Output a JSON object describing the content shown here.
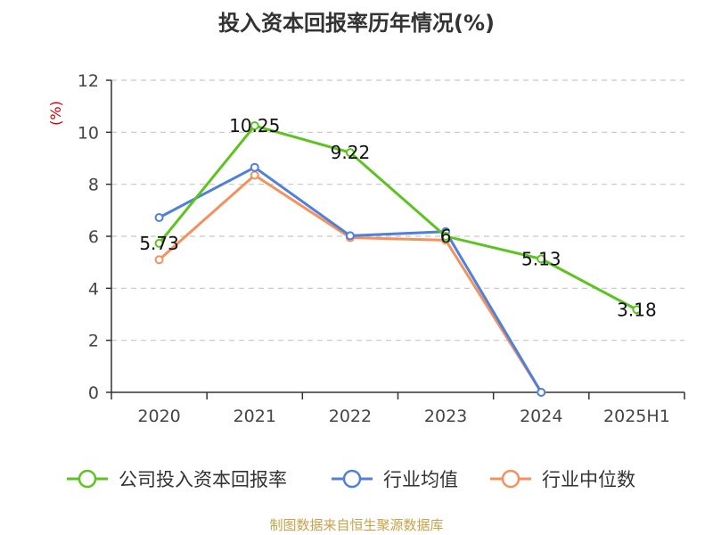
{
  "chart_data": {
    "type": "line",
    "title": "投入资本回报率历年情况(%)",
    "ylabel": "(%)",
    "ylim": [
      0,
      12
    ],
    "yticks": [
      0,
      2,
      4,
      6,
      8,
      10,
      12
    ],
    "grid": true,
    "legend_position": "bottom",
    "categories": [
      "2020",
      "2021",
      "2022",
      "2023",
      "2024",
      "2025H1"
    ],
    "series": [
      {
        "name": "公司投入资本回报率",
        "color": "#5cc320",
        "values": [
          5.73,
          10.25,
          9.22,
          6,
          5.13,
          3.18
        ],
        "labels": [
          "5.73",
          "10.25",
          "9.22",
          "6",
          "5.13",
          "3.18"
        ]
      },
      {
        "name": "行业均值",
        "color": "#4f80dc",
        "values": [
          6.72,
          8.65,
          6.02,
          6.18,
          0.0,
          null
        ]
      },
      {
        "name": "行业中位数",
        "color": "#f5915c",
        "values": [
          5.1,
          8.35,
          5.95,
          5.85,
          0.0,
          null
        ]
      }
    ]
  },
  "footer": {
    "source": "制图数据来自恒生聚源数据库"
  }
}
